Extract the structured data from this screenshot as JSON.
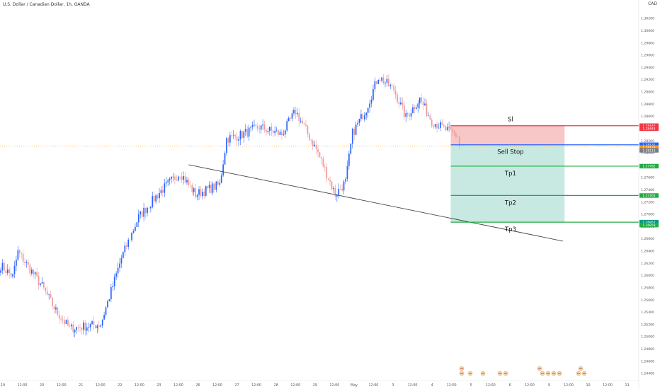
{
  "header": {
    "title": "U.S. Dollar / Canadian Dollar, 1h, OANDA",
    "currency": "CAD"
  },
  "colors": {
    "up": "#2962ff",
    "down": "#ef9a9a",
    "sl": "#f23645",
    "entry": "#2962ff",
    "tp": "#22ab42",
    "trend": "#444444",
    "last": "#ff9800",
    "sl_zone": "#f7c6c6",
    "tp_zone": "#c7e9e2"
  },
  "chart_data": {
    "type": "candlestick",
    "title": "U.S. Dollar / Canadian Dollar, 1h, OANDA",
    "ylim": [
      1.2435,
      1.3045
    ],
    "y_ticks": [
      1.244,
      1.246,
      1.248,
      1.25,
      1.252,
      1.254,
      1.256,
      1.258,
      1.26,
      1.262,
      1.264,
      1.266,
      1.268,
      1.27,
      1.272,
      1.274,
      1.276,
      1.278,
      1.28,
      1.282,
      1.284,
      1.286,
      1.288,
      1.29,
      1.292,
      1.294,
      1.296,
      1.298,
      1.3,
      1.302
    ],
    "y_tick_labels": [
      "1.24400",
      "1.24600",
      "1.24800",
      "1.25000",
      "1.25200",
      "1.25400",
      "1.25600",
      "1.25800",
      "1.26000",
      "1.26200",
      "1.26400",
      "1.26600",
      "1.26800",
      "1.27000",
      "1.27200",
      "1.27400",
      "1.27600",
      "1.27800",
      "1.28000",
      "1.28200",
      "1.28400",
      "1.28600",
      "1.28800",
      "1.29000",
      "1.29200",
      "1.29400",
      "1.29600",
      "1.29800",
      "1.30000",
      "1.30200"
    ],
    "x_labels": [
      "19",
      "12:00",
      "20",
      "12:00",
      "21",
      "12:00",
      "22",
      "12:00",
      "23",
      "12:00",
      "26",
      "12:00",
      "27",
      "12:00",
      "28",
      "12:00",
      "29",
      "12:00",
      "May",
      "12:00",
      "3",
      "12:00",
      "4",
      "12:00",
      "5",
      "12:00",
      "6",
      "12:00",
      "9",
      "12:00",
      "10",
      "12:00",
      "11"
    ],
    "key_points": [
      {
        "t": 0,
        "price": 1.2616
      },
      {
        "t": 7,
        "price": 1.2598
      },
      {
        "t": 10,
        "price": 1.2638
      },
      {
        "t": 24,
        "price": 1.2582
      },
      {
        "t": 32,
        "price": 1.2542
      },
      {
        "t": 40,
        "price": 1.2513
      },
      {
        "t": 58,
        "price": 1.252
      },
      {
        "t": 70,
        "price": 1.2628
      },
      {
        "t": 80,
        "price": 1.2695
      },
      {
        "t": 92,
        "price": 1.2735
      },
      {
        "t": 104,
        "price": 1.2768
      },
      {
        "t": 113,
        "price": 1.2732
      },
      {
        "t": 127,
        "price": 1.2748
      },
      {
        "t": 131,
        "price": 1.2823
      },
      {
        "t": 138,
        "price": 1.2828
      },
      {
        "t": 150,
        "price": 1.2842
      },
      {
        "t": 163,
        "price": 1.283
      },
      {
        "t": 171,
        "price": 1.2868
      },
      {
        "t": 184,
        "price": 1.28
      },
      {
        "t": 194,
        "price": 1.2732
      },
      {
        "t": 200,
        "price": 1.2752
      },
      {
        "t": 204,
        "price": 1.2832
      },
      {
        "t": 212,
        "price": 1.2872
      },
      {
        "t": 219,
        "price": 1.2925
      },
      {
        "t": 228,
        "price": 1.2903
      },
      {
        "t": 235,
        "price": 1.2858
      },
      {
        "t": 243,
        "price": 1.2888
      },
      {
        "t": 250,
        "price": 1.2852
      },
      {
        "t": 258,
        "price": 1.2838
      },
      {
        "t": 266,
        "price": 1.2826
      }
    ],
    "last_candle_index": 266,
    "trendline": {
      "from": {
        "t": 109,
        "price": 1.27805
      },
      "to": {
        "t": 326,
        "price": 1.26558
      }
    },
    "levels": {
      "sl": {
        "label": "Sl",
        "price": 1.28443
      },
      "entry": {
        "label": "Sell Stop",
        "price": 1.28131
      },
      "tp1": {
        "label": "Tp1",
        "price": 1.27782
      },
      "tp2": {
        "label": "Tp2",
        "price": 1.27303
      },
      "tp3": {
        "label": "Tp3",
        "price": 1.26867
      }
    },
    "price_labels": [
      {
        "text": "1.28443",
        "price": 1.28443,
        "color": "#f23645"
      },
      {
        "text": "1.28445",
        "price": 1.28395,
        "color": "#f23645"
      },
      {
        "text": "1.28131",
        "price": 1.28131,
        "color": "#2962ff"
      },
      {
        "text": "1.28113",
        "price": 1.28085,
        "color": "#ff9800"
      },
      {
        "text": "1.28113",
        "price": 1.2804,
        "color": "#787b86"
      },
      {
        "text": "1.27782",
        "price": 1.27782,
        "color": "#22ab42"
      },
      {
        "text": "1.27303",
        "price": 1.27303,
        "color": "#22ab42"
      },
      {
        "text": "1.26867",
        "price": 1.26867,
        "color": "#089981"
      },
      {
        "text": "1.26858",
        "price": 1.2682,
        "color": "#22ab42"
      }
    ],
    "position_box": {
      "t_start": 261,
      "t_end": 327
    }
  }
}
